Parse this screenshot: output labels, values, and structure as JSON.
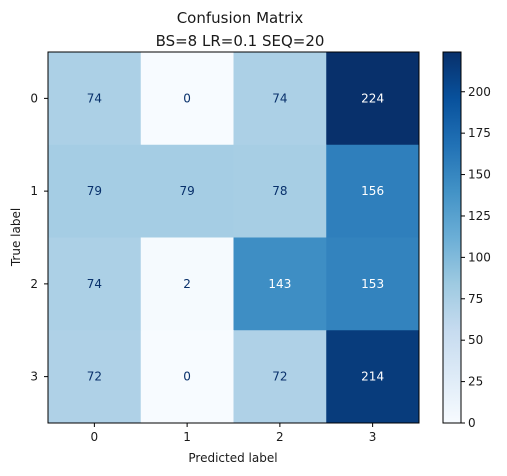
{
  "chart_data": {
    "type": "heatmap",
    "title_lines": [
      "Confusion Matrix",
      "BS=8 LR=0.1 SEQ=20"
    ],
    "xlabel": "Predicted label",
    "ylabel": "True label",
    "x_categories": [
      "0",
      "1",
      "2",
      "3"
    ],
    "y_categories": [
      "0",
      "1",
      "2",
      "3"
    ],
    "values": [
      [
        74,
        0,
        74,
        224
      ],
      [
        79,
        79,
        78,
        156
      ],
      [
        74,
        2,
        143,
        153
      ],
      [
        72,
        0,
        72,
        214
      ]
    ],
    "colormap": "Blues",
    "colorbar_range": [
      0,
      224
    ],
    "colorbar_ticks": [
      0,
      25,
      50,
      75,
      100,
      125,
      150,
      175,
      200
    ]
  }
}
